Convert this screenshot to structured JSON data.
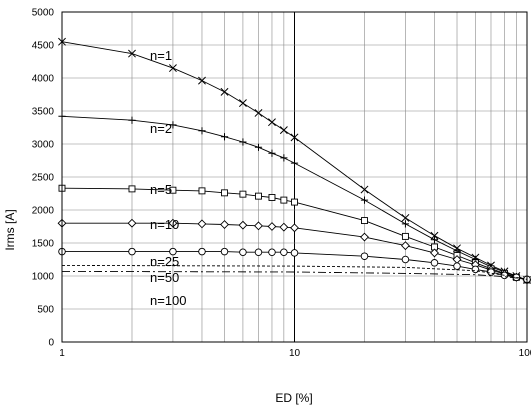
{
  "chart_data": {
    "type": "line",
    "xlabel": "ED [%]",
    "ylabel": "Irms [A]",
    "xscale": "log",
    "xlim": [
      1,
      100
    ],
    "ylim": [
      0,
      5000
    ],
    "grid": true,
    "x_ticks": [
      "1",
      "10",
      "100"
    ],
    "y_ticks": [
      "0",
      "500",
      "1000",
      "1500",
      "2000",
      "2500",
      "3000",
      "3500",
      "4000",
      "4500",
      "5000"
    ],
    "series": [
      {
        "name": "n=1",
        "marker": "x",
        "dash": "",
        "x": [
          1,
          2,
          3,
          4,
          5,
          6,
          7,
          8,
          9,
          10,
          20,
          30,
          40,
          50,
          60,
          70,
          80,
          90,
          100
        ],
        "y": [
          4550,
          4370,
          4150,
          3960,
          3790,
          3620,
          3470,
          3330,
          3210,
          3100,
          2310,
          1880,
          1610,
          1420,
          1280,
          1160,
          1070,
          1000,
          940
        ]
      },
      {
        "name": "n=2",
        "marker": "+",
        "dash": "",
        "x": [
          1,
          2,
          3,
          4,
          5,
          6,
          7,
          8,
          9,
          10,
          20,
          30,
          40,
          50,
          60,
          70,
          80,
          90,
          100
        ],
        "y": [
          3420,
          3360,
          3290,
          3200,
          3110,
          3030,
          2950,
          2860,
          2790,
          2710,
          2150,
          1790,
          1550,
          1380,
          1250,
          1140,
          1060,
          990,
          940
        ]
      },
      {
        "name": "n=5",
        "marker": "square",
        "dash": "",
        "x": [
          1,
          2,
          3,
          4,
          5,
          6,
          7,
          8,
          9,
          10,
          20,
          30,
          40,
          50,
          60,
          70,
          80,
          90,
          100
        ],
        "y": [
          2330,
          2320,
          2300,
          2290,
          2260,
          2240,
          2210,
          2190,
          2150,
          2120,
          1840,
          1600,
          1440,
          1310,
          1200,
          1110,
          1040,
          980,
          940
        ]
      },
      {
        "name": "n=10",
        "marker": "diamond",
        "dash": "",
        "x": [
          1,
          2,
          3,
          4,
          5,
          6,
          7,
          8,
          9,
          10,
          20,
          30,
          40,
          50,
          60,
          70,
          80,
          90,
          100
        ],
        "y": [
          1800,
          1800,
          1800,
          1790,
          1780,
          1770,
          1760,
          1750,
          1740,
          1730,
          1590,
          1460,
          1350,
          1250,
          1170,
          1090,
          1030,
          980,
          940
        ]
      },
      {
        "name": "n=25",
        "marker": "circle",
        "dash": "",
        "x": [
          1,
          2,
          3,
          4,
          5,
          6,
          7,
          8,
          9,
          10,
          20,
          30,
          40,
          50,
          60,
          70,
          80,
          90,
          100
        ],
        "y": [
          1370,
          1370,
          1370,
          1370,
          1370,
          1360,
          1360,
          1360,
          1360,
          1350,
          1300,
          1250,
          1200,
          1150,
          1100,
          1060,
          1010,
          980,
          950
        ]
      },
      {
        "name": "n=50",
        "marker": "none",
        "dash": "3,2",
        "x": [
          1,
          10,
          30,
          60,
          80,
          100
        ],
        "y": [
          1160,
          1150,
          1130,
          1080,
          1010,
          950
        ]
      },
      {
        "name": "n=100",
        "marker": "none",
        "dash": "8,3,2,3",
        "x": [
          1,
          10,
          30,
          60,
          80,
          100
        ],
        "y": [
          1070,
          1060,
          1040,
          1020,
          990,
          950
        ]
      }
    ]
  }
}
